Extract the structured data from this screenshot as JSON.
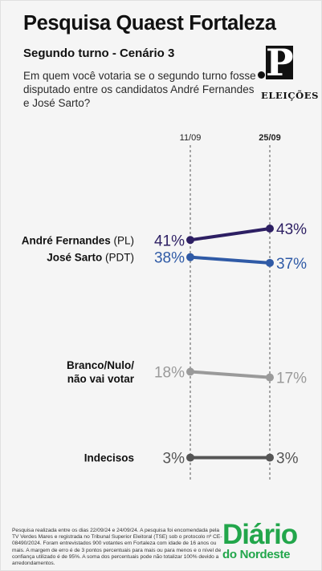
{
  "header": {
    "title": "Pesquisa Quaest Fortaleza",
    "subtitle": "Segundo turno - Cenário 3",
    "question": "Em quem você votaria se o segundo turno fosse disputado entre os candidatos André Fernandes e José Sarto?"
  },
  "logo": {
    "letter": "P",
    "label": "ELEIÇÕES"
  },
  "chart_data": {
    "type": "line",
    "x": [
      "11/09",
      "25/09"
    ],
    "ylim": [
      0,
      50
    ],
    "series": [
      {
        "name": "André Fernandes",
        "suffix": "(PL)",
        "values": [
          41,
          43
        ],
        "labels": [
          "41%",
          "43%"
        ],
        "color": "#2d1f63"
      },
      {
        "name": "José Sarto",
        "suffix": "(PDT)",
        "values": [
          38,
          37
        ],
        "labels": [
          "38%",
          "37%"
        ],
        "color": "#2f5aa6"
      },
      {
        "name": "Branco/Nulo/\nnão vai votar",
        "suffix": "",
        "values": [
          18,
          17
        ],
        "labels": [
          "18%",
          "17%"
        ],
        "color": "#9a9a9a"
      },
      {
        "name": "Indecisos",
        "suffix": "",
        "values": [
          3,
          3
        ],
        "labels": [
          "3%",
          "3%"
        ],
        "color": "#555555"
      }
    ]
  },
  "footnote": "Pesquisa realizada entre os dias 22/09/24 e 24/09/24. A pesquisa foi encomendada pela TV Verdes Mares e registrada no Tribunal Superior Eleitoral (TSE) sob o protocolo nº CE-08490/2024. Foram entrevistados 900 votantes em Fortaleza com idade de 16 anos ou mais. A margem de erro é de 3 pontos percentuais para mais ou para menos e o nível de confiança utilizado é de 95%. A soma dos percentuais pode não totalizar 100% devido a arredondamentos.",
  "brand": {
    "line1": "Diário",
    "line2": "do Nordeste"
  }
}
